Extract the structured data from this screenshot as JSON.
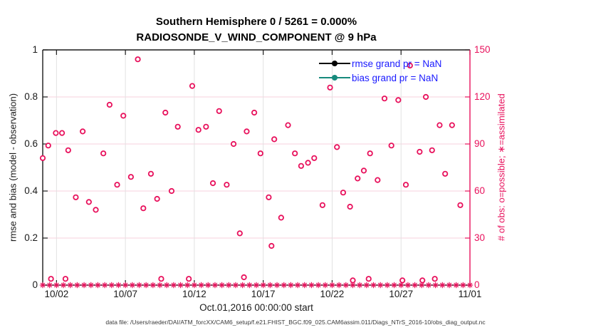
{
  "figure": {
    "title_line1": "Southern Hemisphere 0 / 5261 = 0.000%",
    "title_line2": "RADIOSONDE_V_WIND_COMPONENT @ 9 hPa",
    "footer": "data file: /Users/raeder/DAI/ATM_forcXX/CAM6_setup/f.e21.FHIST_BGC.f09_025.CAM6assim.011/Diags_NTrS_2016-10/obs_diag_output.nc"
  },
  "chart_data": {
    "type": "scatter",
    "title": "Southern Hemisphere 0 / 5261 = 0.000% | RADIOSONDE_V_WIND_COMPONENT @ 9 hPa",
    "x_axis": {
      "label": "Oct.01,2016 00:00:00 start",
      "tick_labels": [
        "10/02",
        "10/07",
        "10/12",
        "10/17",
        "10/22",
        "10/27",
        "11/01"
      ],
      "tick_days": [
        1,
        6,
        11,
        16,
        21,
        26,
        31
      ],
      "range_days": [
        0,
        31
      ]
    },
    "y_left": {
      "label": "rmse and bias (model - observation)",
      "ticks": [
        0,
        0.2,
        0.4,
        0.6,
        0.8,
        1
      ],
      "range": [
        0,
        1
      ],
      "color": "#1a1a1a"
    },
    "y_right": {
      "label": "# of obs: o=possible; ∗=assimilated",
      "ticks": [
        0,
        30,
        60,
        90,
        120,
        150
      ],
      "range": [
        0,
        150
      ],
      "color": "#e8115c"
    },
    "grid": {
      "horizontal_color": "#f7d0dd",
      "vertical_color": "#e2e2e2",
      "horizontal_on": true,
      "vertical_on": true
    },
    "legend": {
      "position": "upper-right-inside",
      "text_color": "#1a1aff",
      "entries": [
        {
          "label": "rmse grand pr = NaN",
          "color": "#000000",
          "marker": "line-dot"
        },
        {
          "label": "bias grand pr = NaN",
          "color": "#168a7c",
          "marker": "line-dot"
        }
      ]
    },
    "series": [
      {
        "name": "possible_obs_count",
        "axis": "right",
        "marker": "o",
        "color": "#e8115c",
        "points_day_count": [
          [
            0,
            81
          ],
          [
            0.4,
            89
          ],
          [
            0.6,
            4
          ],
          [
            0.95,
            97
          ],
          [
            1.4,
            97
          ],
          [
            1.65,
            4
          ],
          [
            1.85,
            86
          ],
          [
            2.4,
            56
          ],
          [
            2.9,
            98
          ],
          [
            3.35,
            53
          ],
          [
            3.85,
            48
          ],
          [
            4.4,
            84
          ],
          [
            4.85,
            115
          ],
          [
            5.4,
            64
          ],
          [
            5.85,
            108
          ],
          [
            6.4,
            69
          ],
          [
            6.9,
            144
          ],
          [
            7.3,
            49
          ],
          [
            7.85,
            71
          ],
          [
            8.3,
            55
          ],
          [
            8.6,
            4
          ],
          [
            8.9,
            110
          ],
          [
            9.35,
            60
          ],
          [
            9.8,
            101
          ],
          [
            10.6,
            4
          ],
          [
            10.85,
            127
          ],
          [
            11.3,
            99
          ],
          [
            11.85,
            101
          ],
          [
            12.35,
            65
          ],
          [
            12.8,
            111
          ],
          [
            13.35,
            64
          ],
          [
            13.85,
            90
          ],
          [
            14.3,
            33
          ],
          [
            14.6,
            5
          ],
          [
            14.8,
            98
          ],
          [
            15.35,
            110
          ],
          [
            15.8,
            84
          ],
          [
            16.4,
            56
          ],
          [
            16.6,
            25
          ],
          [
            16.8,
            93
          ],
          [
            17.3,
            43
          ],
          [
            17.8,
            102
          ],
          [
            18.3,
            84
          ],
          [
            18.75,
            76
          ],
          [
            19.25,
            78
          ],
          [
            19.7,
            81
          ],
          [
            20.3,
            51
          ],
          [
            20.85,
            126
          ],
          [
            21.35,
            88
          ],
          [
            21.8,
            59
          ],
          [
            22.3,
            50
          ],
          [
            22.5,
            3
          ],
          [
            22.85,
            68
          ],
          [
            23.3,
            73
          ],
          [
            23.65,
            4
          ],
          [
            23.75,
            84
          ],
          [
            24.3,
            67
          ],
          [
            24.8,
            119
          ],
          [
            25.3,
            89
          ],
          [
            25.8,
            118
          ],
          [
            26.1,
            3
          ],
          [
            26.35,
            64
          ],
          [
            26.65,
            140
          ],
          [
            27.35,
            85
          ],
          [
            27.55,
            3
          ],
          [
            27.8,
            120
          ],
          [
            28.25,
            86
          ],
          [
            28.45,
            4
          ],
          [
            28.8,
            102
          ],
          [
            29.2,
            71
          ],
          [
            29.7,
            102
          ],
          [
            30.3,
            51
          ]
        ]
      },
      {
        "name": "assimilated_obs_count",
        "axis": "right",
        "marker": "*",
        "color": "#e8115c",
        "uniform_value": 0,
        "day_start": 0,
        "day_end": 31,
        "day_step": 0.5
      },
      {
        "name": "rmse",
        "axis": "left",
        "color": "#000000",
        "values": "NaN (not plotted)"
      },
      {
        "name": "bias",
        "axis": "left",
        "color": "#168a7c",
        "values": "NaN (not plotted)"
      }
    ]
  }
}
